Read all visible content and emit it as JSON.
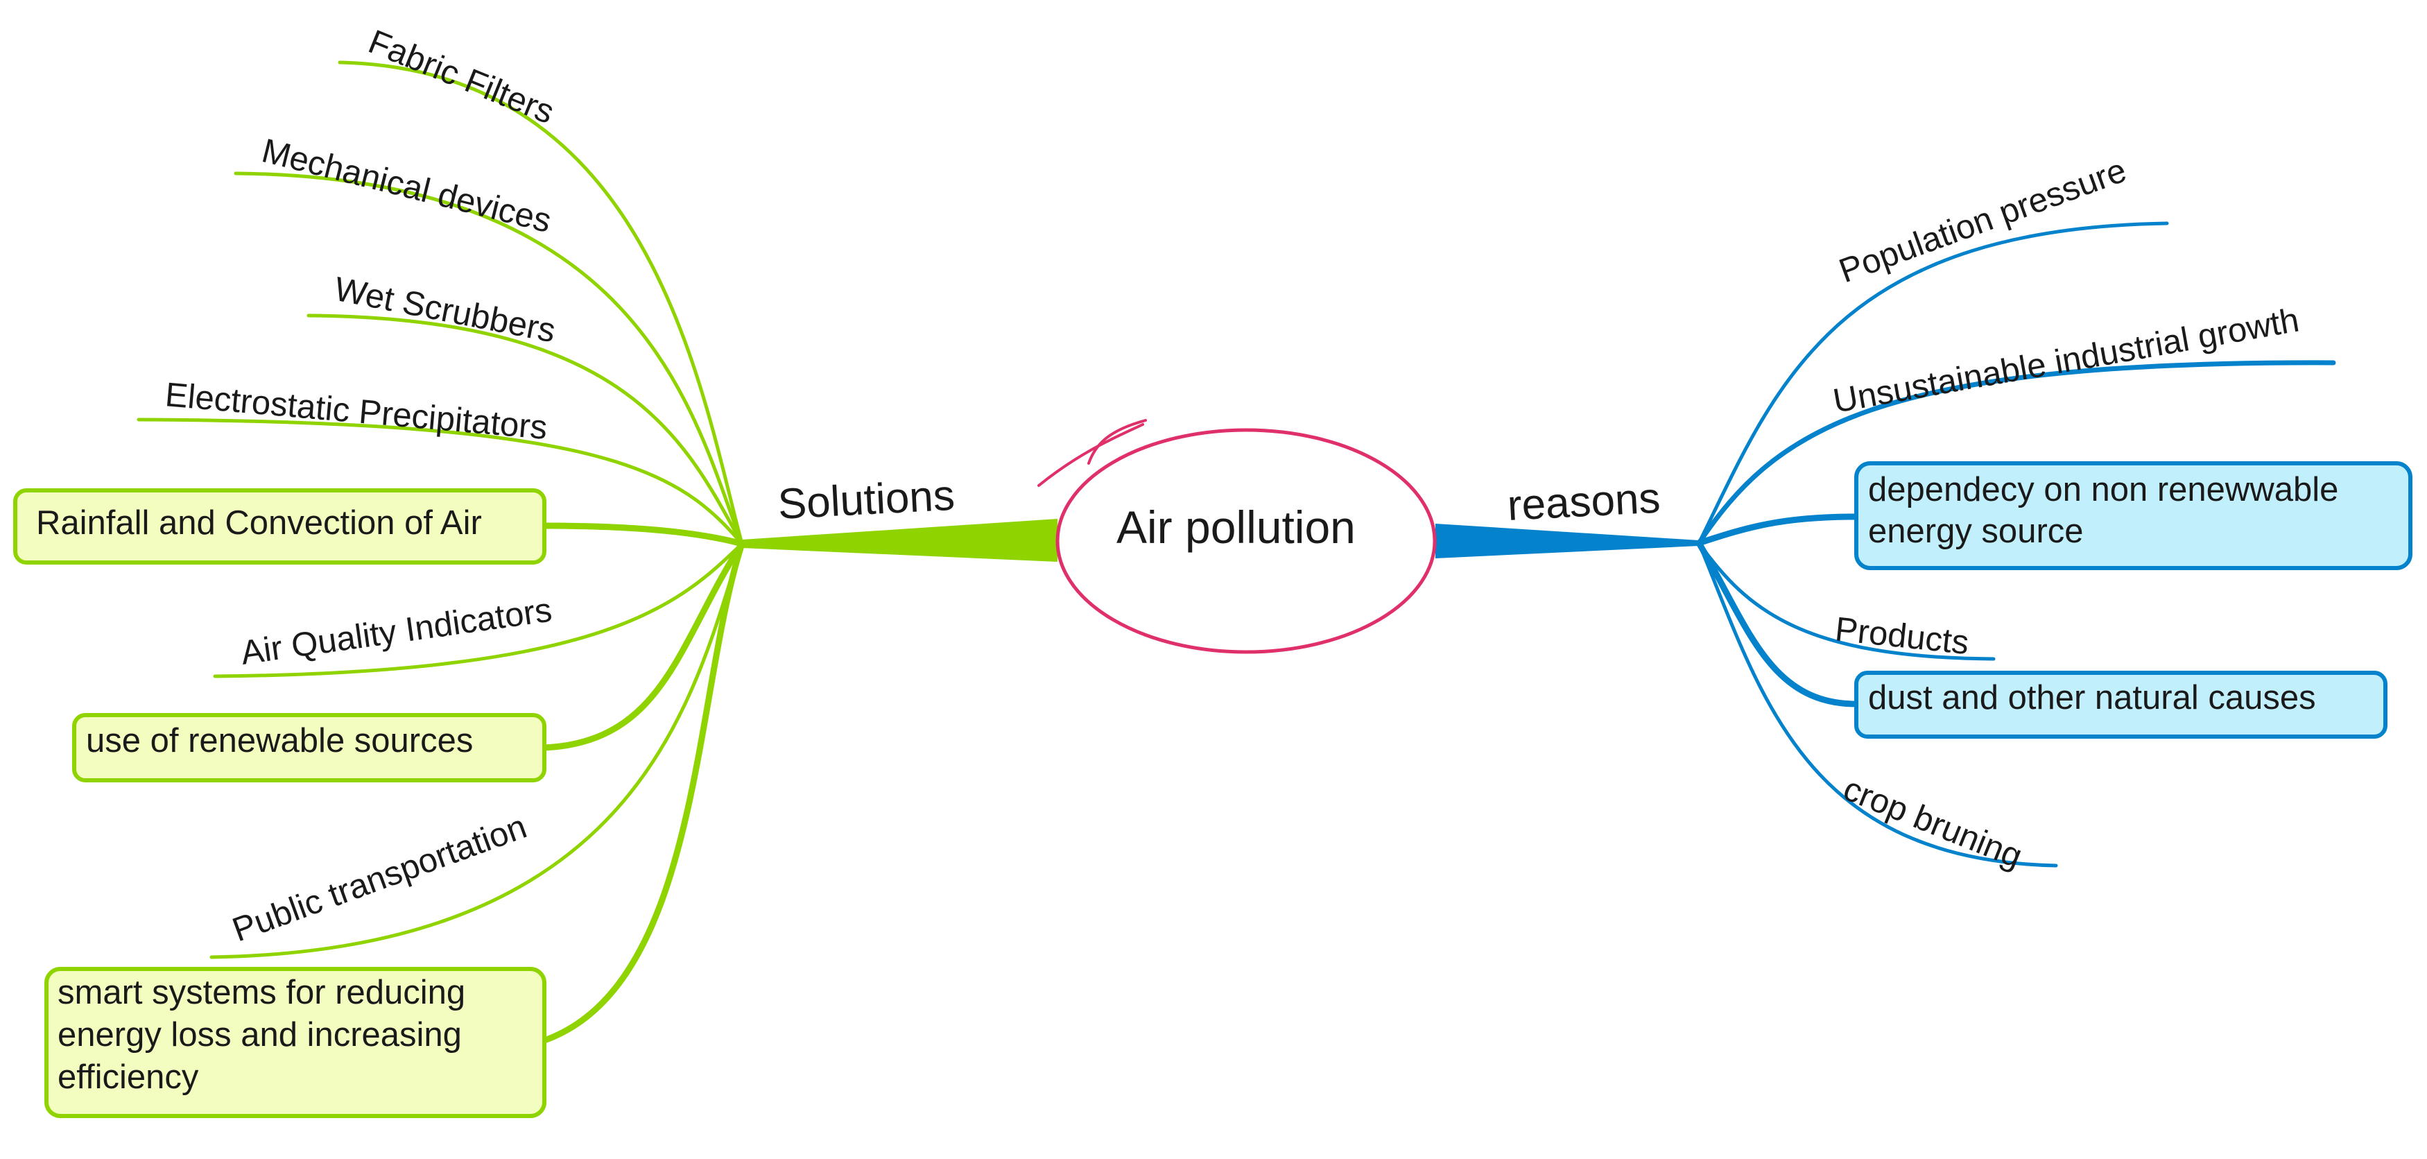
{
  "colors": {
    "solutions": "#8fd400",
    "solutions_box_fill": "#f3fdbf",
    "reasons": "#0482cc",
    "reasons_box_fill": "#c2effc",
    "center_outline": "#e0306a",
    "text": "#1a1a1a"
  },
  "center": {
    "label": "Air pollution"
  },
  "solutions": {
    "label": "Solutions",
    "items": [
      {
        "label": "Fabric Filters"
      },
      {
        "label": "Mechanical devices"
      },
      {
        "label": "Wet Scrubbers"
      },
      {
        "label": "Electrostatic Precipitators"
      },
      {
        "label": "Rainfall and Convection of Air"
      },
      {
        "label": "Air Quality Indicators"
      },
      {
        "label": "use of renewable sources"
      },
      {
        "label": "Public transportation"
      },
      {
        "lines": [
          "smart systems for reducing",
          "energy loss and increasing",
          "efficiency"
        ]
      }
    ]
  },
  "reasons": {
    "label": "reasons",
    "items": [
      {
        "label": "Population pressure"
      },
      {
        "label": "Unsustainable industrial growth"
      },
      {
        "lines": [
          "dependecy on non renewwable",
          "energy source"
        ]
      },
      {
        "label": "Products"
      },
      {
        "label": "dust and other natural causes"
      },
      {
        "label": "crop bruning"
      }
    ]
  }
}
